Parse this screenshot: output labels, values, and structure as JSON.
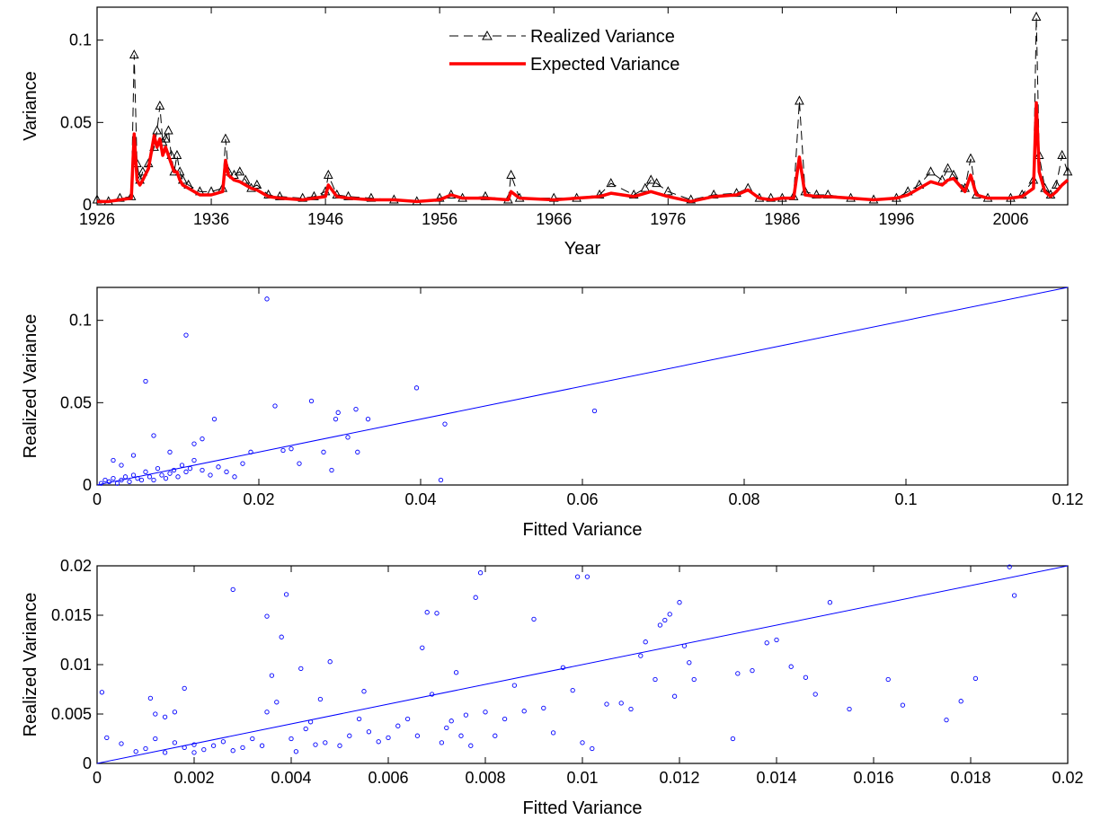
{
  "colors": {
    "realized": "#000000",
    "expected": "#ff0000",
    "scatter": "#0000ff",
    "fit_line": "#0000ff"
  },
  "chart_data": [
    {
      "type": "line",
      "title": "",
      "xlabel": "Year",
      "ylabel": "Variance",
      "xlim": [
        1926,
        2011
      ],
      "ylim": [
        0,
        0.12
      ],
      "xticks": [
        1926,
        1936,
        1946,
        1956,
        1966,
        1976,
        1986,
        1996,
        2006
      ],
      "yticks": [
        0,
        0.05,
        0.1
      ],
      "xtick_labels": [
        "1926",
        "1936",
        "1946",
        "1956",
        "1966",
        "1976",
        "1986",
        "1996",
        "2006"
      ],
      "ytick_labels": [
        "0",
        "0.05",
        "0.1"
      ],
      "legend": "top-center",
      "grid": false,
      "series": [
        {
          "name": "Realized Variance",
          "style": "dashed-triangle",
          "x": [
            1926,
            1927,
            1928,
            1929.0,
            1929.25,
            1929.5,
            1929.75,
            1930,
            1930.5,
            1931,
            1931.25,
            1931.5,
            1931.75,
            1932,
            1932.25,
            1932.5,
            1932.75,
            1933,
            1933.25,
            1933.5,
            1934,
            1935,
            1936,
            1937.0,
            1937.25,
            1937.5,
            1938,
            1938.5,
            1939,
            1939.5,
            1940,
            1941,
            1942,
            1944,
            1945,
            1946,
            1946.25,
            1947,
            1948,
            1950,
            1952,
            1954,
            1956,
            1957,
            1958,
            1960,
            1962,
            1962.25,
            1963,
            1966,
            1968,
            1970,
            1971,
            1973,
            1974,
            1974.5,
            1975,
            1976,
            1978,
            1980,
            1982,
            1983,
            1984,
            1985,
            1986,
            1987,
            1987.5,
            1988,
            1989,
            1990,
            1992,
            1994,
            1996,
            1997,
            1998,
            1999,
            2000,
            2000.5,
            2001,
            2002,
            2002.5,
            2003,
            2004,
            2006,
            2007,
            2008.0,
            2008.25,
            2008.5,
            2009,
            2009.5,
            2010,
            2010.5,
            2011
          ],
          "y": [
            0.003,
            0.002,
            0.004,
            0.005,
            0.091,
            0.025,
            0.015,
            0.02,
            0.025,
            0.035,
            0.045,
            0.06,
            0.038,
            0.04,
            0.045,
            0.03,
            0.02,
            0.03,
            0.02,
            0.015,
            0.012,
            0.008,
            0.008,
            0.01,
            0.04,
            0.02,
            0.018,
            0.02,
            0.015,
            0.01,
            0.012,
            0.006,
            0.005,
            0.004,
            0.005,
            0.008,
            0.018,
            0.006,
            0.005,
            0.004,
            0.003,
            0.002,
            0.004,
            0.006,
            0.004,
            0.005,
            0.003,
            0.018,
            0.004,
            0.004,
            0.004,
            0.006,
            0.013,
            0.006,
            0.01,
            0.015,
            0.013,
            0.008,
            0.003,
            0.006,
            0.007,
            0.01,
            0.004,
            0.004,
            0.004,
            0.005,
            0.063,
            0.008,
            0.006,
            0.006,
            0.004,
            0.003,
            0.004,
            0.008,
            0.012,
            0.02,
            0.015,
            0.022,
            0.018,
            0.01,
            0.028,
            0.006,
            0.004,
            0.004,
            0.006,
            0.015,
            0.114,
            0.03,
            0.01,
            0.006,
            0.012,
            0.03,
            0.02
          ]
        },
        {
          "name": "Expected Variance",
          "style": "solid-thick",
          "x": [
            1926,
            1927,
            1928,
            1929.0,
            1929.25,
            1929.5,
            1929.75,
            1930,
            1930.5,
            1931,
            1931.25,
            1931.5,
            1931.75,
            1932,
            1932.25,
            1932.5,
            1932.75,
            1933,
            1933.25,
            1933.5,
            1934,
            1935,
            1936,
            1937.0,
            1937.25,
            1937.5,
            1938,
            1938.5,
            1939,
            1939.5,
            1940,
            1941,
            1942,
            1944,
            1945,
            1946,
            1946.25,
            1947,
            1948,
            1950,
            1952,
            1954,
            1956,
            1957,
            1958,
            1960,
            1962,
            1962.25,
            1963,
            1966,
            1968,
            1970,
            1971,
            1973,
            1974,
            1974.5,
            1975,
            1976,
            1978,
            1980,
            1982,
            1983,
            1984,
            1985,
            1986,
            1987,
            1987.5,
            1988,
            1989,
            1990,
            1992,
            1994,
            1996,
            1997,
            1998,
            1999,
            2000,
            2000.5,
            2001,
            2002,
            2002.5,
            2003,
            2004,
            2006,
            2007,
            2008.0,
            2008.25,
            2008.5,
            2009,
            2009.5,
            2010,
            2010.5,
            2011
          ],
          "y": [
            0.002,
            0.002,
            0.003,
            0.004,
            0.043,
            0.015,
            0.012,
            0.015,
            0.022,
            0.042,
            0.035,
            0.04,
            0.03,
            0.035,
            0.03,
            0.025,
            0.02,
            0.02,
            0.015,
            0.012,
            0.01,
            0.006,
            0.006,
            0.008,
            0.027,
            0.018,
            0.015,
            0.014,
            0.012,
            0.01,
            0.009,
            0.005,
            0.004,
            0.003,
            0.004,
            0.005,
            0.012,
            0.005,
            0.004,
            0.003,
            0.003,
            0.002,
            0.003,
            0.006,
            0.004,
            0.004,
            0.003,
            0.008,
            0.004,
            0.003,
            0.004,
            0.005,
            0.007,
            0.005,
            0.007,
            0.008,
            0.007,
            0.005,
            0.002,
            0.005,
            0.006,
            0.009,
            0.004,
            0.003,
            0.004,
            0.004,
            0.029,
            0.006,
            0.005,
            0.005,
            0.004,
            0.003,
            0.004,
            0.006,
            0.01,
            0.014,
            0.012,
            0.015,
            0.016,
            0.008,
            0.018,
            0.006,
            0.004,
            0.004,
            0.005,
            0.01,
            0.062,
            0.02,
            0.008,
            0.005,
            0.008,
            0.012,
            0.015
          ]
        }
      ]
    },
    {
      "type": "scatter",
      "title": "",
      "xlabel": "Fitted Variance",
      "ylabel": "Realized Variance",
      "xlim": [
        0,
        0.12
      ],
      "ylim": [
        0,
        0.12
      ],
      "xticks": [
        0,
        0.02,
        0.04,
        0.06,
        0.08,
        0.1,
        0.12
      ],
      "yticks": [
        0,
        0.05,
        0.1
      ],
      "xtick_labels": [
        "0",
        "0.02",
        "0.04",
        "0.06",
        "0.08",
        "0.1",
        "0.12"
      ],
      "ytick_labels": [
        "0",
        "0.05",
        "0.1"
      ],
      "grid": false,
      "fit_line": {
        "x": [
          0,
          0.12
        ],
        "y": [
          0,
          0.12
        ]
      },
      "points": [
        [
          0.0005,
          0.001
        ],
        [
          0.001,
          0.003
        ],
        [
          0.0015,
          0.002
        ],
        [
          0.002,
          0.004
        ],
        [
          0.0025,
          0.001
        ],
        [
          0.003,
          0.003
        ],
        [
          0.0035,
          0.005
        ],
        [
          0.004,
          0.002
        ],
        [
          0.0045,
          0.006
        ],
        [
          0.005,
          0.004
        ],
        [
          0.0055,
          0.003
        ],
        [
          0.006,
          0.008
        ],
        [
          0.0065,
          0.005
        ],
        [
          0.007,
          0.003
        ],
        [
          0.0075,
          0.01
        ],
        [
          0.008,
          0.006
        ],
        [
          0.0085,
          0.004
        ],
        [
          0.009,
          0.007
        ],
        [
          0.0095,
          0.009
        ],
        [
          0.01,
          0.005
        ],
        [
          0.0105,
          0.012
        ],
        [
          0.011,
          0.008
        ],
        [
          0.0115,
          0.01
        ],
        [
          0.012,
          0.015
        ],
        [
          0.013,
          0.009
        ],
        [
          0.014,
          0.006
        ],
        [
          0.015,
          0.011
        ],
        [
          0.016,
          0.008
        ],
        [
          0.017,
          0.005
        ],
        [
          0.018,
          0.013
        ],
        [
          0.002,
          0.015
        ],
        [
          0.003,
          0.012
        ],
        [
          0.0045,
          0.018
        ],
        [
          0.006,
          0.063
        ],
        [
          0.007,
          0.03
        ],
        [
          0.009,
          0.02
        ],
        [
          0.011,
          0.091
        ],
        [
          0.012,
          0.025
        ],
        [
          0.013,
          0.028
        ],
        [
          0.0145,
          0.04
        ],
        [
          0.019,
          0.02
        ],
        [
          0.021,
          0.113
        ],
        [
          0.022,
          0.048
        ],
        [
          0.023,
          0.021
        ],
        [
          0.024,
          0.022
        ],
        [
          0.025,
          0.013
        ],
        [
          0.0265,
          0.051
        ],
        [
          0.028,
          0.02
        ],
        [
          0.029,
          0.009
        ],
        [
          0.0295,
          0.04
        ],
        [
          0.0298,
          0.044
        ],
        [
          0.031,
          0.029
        ],
        [
          0.032,
          0.046
        ],
        [
          0.0322,
          0.02
        ],
        [
          0.0335,
          0.04
        ],
        [
          0.0395,
          0.059
        ],
        [
          0.0425,
          0.003
        ],
        [
          0.043,
          0.037
        ],
        [
          0.0615,
          0.045
        ]
      ]
    },
    {
      "type": "scatter",
      "title": "",
      "xlabel": "Fitted Variance",
      "ylabel": "Realized Variance",
      "xlim": [
        0,
        0.02
      ],
      "ylim": [
        0,
        0.02
      ],
      "xticks": [
        0,
        0.002,
        0.004,
        0.006,
        0.008,
        0.01,
        0.012,
        0.014,
        0.016,
        0.018,
        0.02
      ],
      "yticks": [
        0,
        0.005,
        0.01,
        0.015,
        0.02
      ],
      "xtick_labels": [
        "0",
        "0.002",
        "0.004",
        "0.006",
        "0.008",
        "0.01",
        "0.012",
        "0.014",
        "0.016",
        "0.018",
        "0.02"
      ],
      "ytick_labels": [
        "0",
        "0.005",
        "0.01",
        "0.015",
        "0.02"
      ],
      "grid": false,
      "fit_line": {
        "x": [
          0,
          0.02
        ],
        "y": [
          0,
          0.02
        ]
      },
      "points": [
        [
          0.0001,
          0.0072
        ],
        [
          0.0002,
          0.0026
        ],
        [
          0.0005,
          0.002
        ],
        [
          0.0008,
          0.0012
        ],
        [
          0.001,
          0.0015
        ],
        [
          0.0012,
          0.0025
        ],
        [
          0.0014,
          0.0011
        ],
        [
          0.0016,
          0.0021
        ],
        [
          0.0018,
          0.0016
        ],
        [
          0.002,
          0.0019
        ],
        [
          0.0011,
          0.0066
        ],
        [
          0.0012,
          0.005
        ],
        [
          0.0014,
          0.0047
        ],
        [
          0.0016,
          0.0052
        ],
        [
          0.0018,
          0.0076
        ],
        [
          0.002,
          0.0011
        ],
        [
          0.0022,
          0.0014
        ],
        [
          0.0024,
          0.0018
        ],
        [
          0.0026,
          0.0022
        ],
        [
          0.0028,
          0.0013
        ],
        [
          0.0028,
          0.0176
        ],
        [
          0.003,
          0.0016
        ],
        [
          0.0032,
          0.0025
        ],
        [
          0.0034,
          0.0018
        ],
        [
          0.0035,
          0.0052
        ],
        [
          0.0035,
          0.0149
        ],
        [
          0.0036,
          0.0089
        ],
        [
          0.0037,
          0.0062
        ],
        [
          0.0038,
          0.0128
        ],
        [
          0.0039,
          0.0171
        ],
        [
          0.004,
          0.0025
        ],
        [
          0.0041,
          0.0012
        ],
        [
          0.0042,
          0.0096
        ],
        [
          0.0043,
          0.0035
        ],
        [
          0.0044,
          0.0042
        ],
        [
          0.0045,
          0.0019
        ],
        [
          0.0046,
          0.0065
        ],
        [
          0.0047,
          0.0021
        ],
        [
          0.0048,
          0.0103
        ],
        [
          0.005,
          0.0018
        ],
        [
          0.0052,
          0.0028
        ],
        [
          0.0054,
          0.0045
        ],
        [
          0.0055,
          0.0073
        ],
        [
          0.0056,
          0.0032
        ],
        [
          0.0058,
          0.0022
        ],
        [
          0.006,
          0.0026
        ],
        [
          0.0062,
          0.0038
        ],
        [
          0.0064,
          0.0045
        ],
        [
          0.0066,
          0.0028
        ],
        [
          0.0067,
          0.0117
        ],
        [
          0.0068,
          0.0153
        ],
        [
          0.0069,
          0.007
        ],
        [
          0.007,
          0.0152
        ],
        [
          0.0071,
          0.0021
        ],
        [
          0.0072,
          0.0036
        ],
        [
          0.0073,
          0.0043
        ],
        [
          0.0074,
          0.0092
        ],
        [
          0.0075,
          0.0028
        ],
        [
          0.0076,
          0.0049
        ],
        [
          0.0077,
          0.0018
        ],
        [
          0.0078,
          0.0168
        ],
        [
          0.0079,
          0.0193
        ],
        [
          0.008,
          0.0052
        ],
        [
          0.0082,
          0.0028
        ],
        [
          0.0084,
          0.0045
        ],
        [
          0.0086,
          0.0079
        ],
        [
          0.0088,
          0.0053
        ],
        [
          0.009,
          0.0146
        ],
        [
          0.0092,
          0.0056
        ],
        [
          0.0094,
          0.0031
        ],
        [
          0.0096,
          0.0097
        ],
        [
          0.0098,
          0.0074
        ],
        [
          0.0099,
          0.0189
        ],
        [
          0.01,
          0.0021
        ],
        [
          0.0101,
          0.0189
        ],
        [
          0.0102,
          0.0015
        ],
        [
          0.0105,
          0.006
        ],
        [
          0.0108,
          0.0061
        ],
        [
          0.011,
          0.0055
        ],
        [
          0.0112,
          0.0109
        ],
        [
          0.0113,
          0.0123
        ],
        [
          0.0115,
          0.0085
        ],
        [
          0.0116,
          0.014
        ],
        [
          0.0117,
          0.0145
        ],
        [
          0.0118,
          0.0151
        ],
        [
          0.0119,
          0.0068
        ],
        [
          0.012,
          0.0163
        ],
        [
          0.0121,
          0.0119
        ],
        [
          0.0122,
          0.0102
        ],
        [
          0.0123,
          0.0085
        ],
        [
          0.0131,
          0.0025
        ],
        [
          0.0132,
          0.0091
        ],
        [
          0.0135,
          0.0094
        ],
        [
          0.0138,
          0.0122
        ],
        [
          0.014,
          0.0125
        ],
        [
          0.0143,
          0.0098
        ],
        [
          0.0146,
          0.0087
        ],
        [
          0.0148,
          0.007
        ],
        [
          0.0151,
          0.0163
        ],
        [
          0.0155,
          0.0055
        ],
        [
          0.0163,
          0.0085
        ],
        [
          0.0166,
          0.0059
        ],
        [
          0.0175,
          0.0044
        ],
        [
          0.0178,
          0.0063
        ],
        [
          0.0181,
          0.0086
        ],
        [
          0.0188,
          0.0199
        ],
        [
          0.0189,
          0.017
        ]
      ]
    }
  ]
}
